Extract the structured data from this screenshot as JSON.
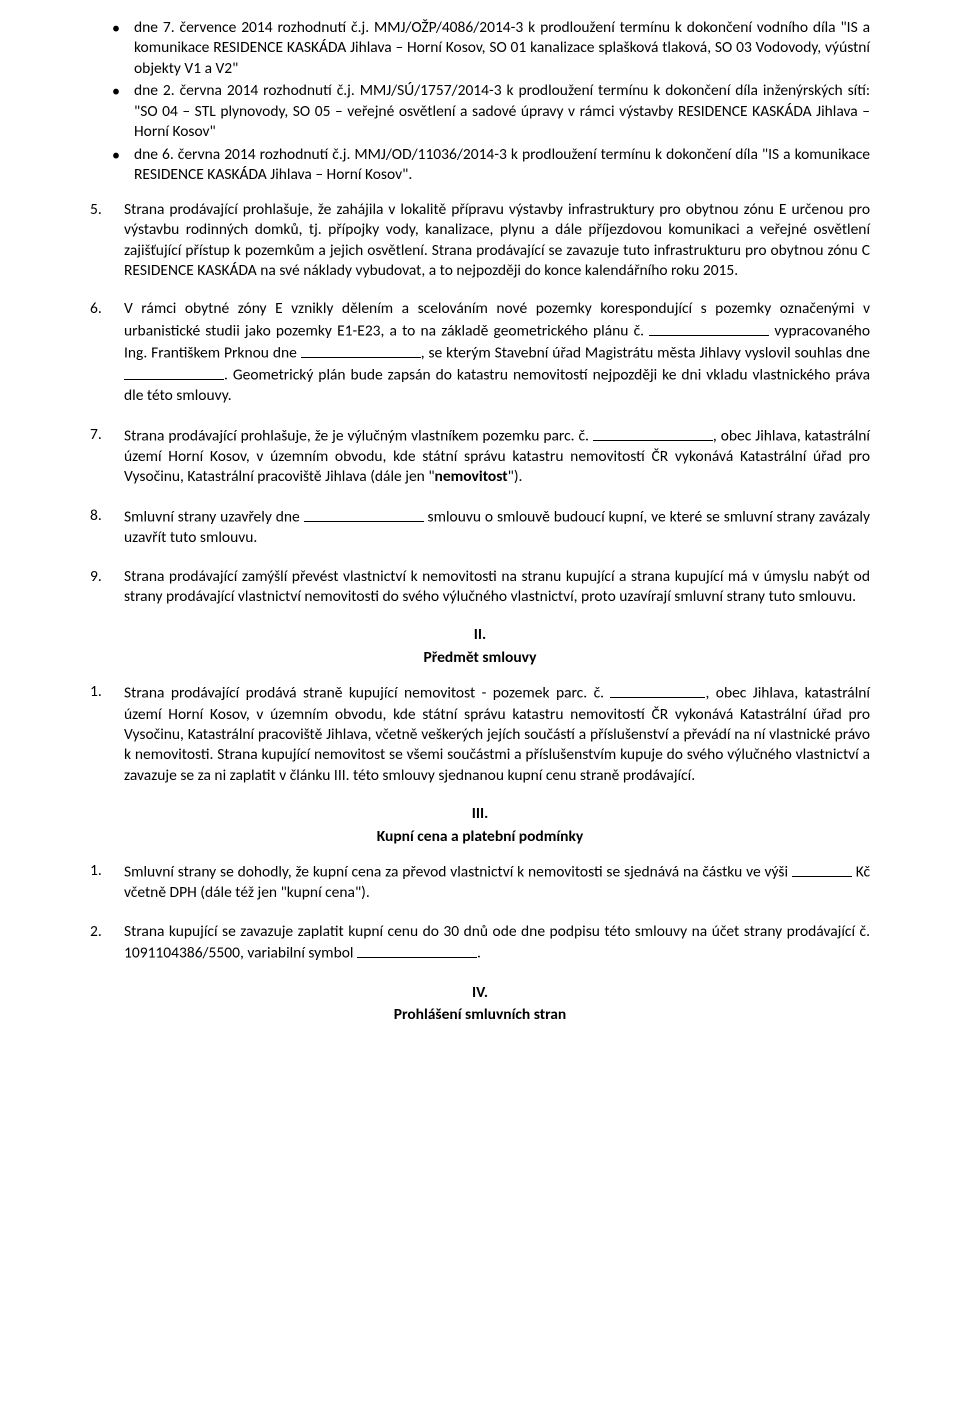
{
  "bullets": {
    "b1_a": "dne 7. července 2014 rozhodnutí č.j. MMJ/OŽP/4086/2014-3 k prodloužení termínu k dokončení vodního díla \"IS a komunikace RESIDENCE KASKÁDA Jihlava – Horní Kosov, SO 01 kanalizace splašková tlaková, SO 03 Vodovody, výústní objekty V1 a V2\"",
    "b1_b": "dne 2. června 2014 rozhodnutí č.j. MMJ/SÚ/1757/2014-3 k prodloužení termínu k dokončení díla inženýrských sítí: \"SO 04 – STL plynovody, SO 05 – veřejné osvětlení a sadové úpravy v rámci výstavby RESIDENCE KASKÁDA Jihlava – Horní Kosov\"",
    "b1_c": "dne 6. června 2014 rozhodnutí č.j. MMJ/OD/11036/2014-3 k prodloužení termínu k dokončení díla \"IS a komunikace RESIDENCE KASKÁDA Jihlava – Horní Kosov\"."
  },
  "items": {
    "n5": "5.",
    "t5": "Strana prodávající prohlašuje, že zahájila v lokalitě přípravu výstavby infrastruktury pro obytnou zónu E určenou pro výstavbu rodinných domků, tj. přípojky vody, kanalizace, plynu a dále příjezdovou komunikaci a veřejné osvětlení zajišťující přístup k pozemkům a jejich osvětlení. Strana prodávající se zavazuje tuto infrastrukturu pro obytnou zónu C RESIDENCE KASKÁDA na své náklady vybudovat, a to nejpozději do konce kalendářního roku 2015.",
    "n6": "6.",
    "t6_a": "V rámci obytné zóny E vznikly dělením a scelováním nové pozemky korespondující s pozemky označenými v urbanistické studii jako pozemky E1-E23, a to na základě geometrického plánu č. ",
    "t6_b": " vypracovaného Ing. Františkem Prknou dne ",
    "t6_c": ", se kterým Stavební úřad Magistrátu města Jihlavy vyslovil souhlas dne ",
    "t6_d": ". Geometrický plán bude zapsán do katastru nemovitostí nejpozději ke dni vkladu vlastnického práva dle této smlouvy.",
    "n7": "7.",
    "t7_a": "Strana prodávající prohlašuje, že je výlučným vlastníkem pozemku parc. č. ",
    "t7_b": ", obec Jihlava, katastrální území Horní Kosov, v územním obvodu, kde státní správu katastru nemovitostí ČR vykonává Katastrální úřad pro Vysočinu, Katastrální pracoviště Jihlava (dále jen \"",
    "t7_c": "nemovitost",
    "t7_d": "\").",
    "n8": "8.",
    "t8_a": "Smluvní strany uzavřely dne ",
    "t8_b": " smlouvu o smlouvě budoucí kupní, ve které se smluvní strany zavázaly uzavřít tuto smlouvu.",
    "n9": "9.",
    "t9": "Strana prodávající zamýšlí převést vlastnictví k nemovitosti na stranu kupující a strana kupující má v úmyslu nabýt od strany prodávající vlastnictví nemovitosti do svého výlučného vlastnictví, proto uzavírají smluvní strany tuto smlouvu."
  },
  "sectionII": {
    "num": "II.",
    "title": "Předmět smlouvy"
  },
  "sII": {
    "n1": "1.",
    "t1_a": "Strana prodávající prodává straně kupující nemovitost - pozemek parc. č. ",
    "t1_b": ", obec Jihlava, katastrální území Horní Kosov, v územním obvodu, kde státní správu katastru nemovitostí ČR vykonává Katastrální úřad pro Vysočinu, Katastrální pracoviště Jihlava, včetně veškerých jejích součástí a příslušenství a převádí na ní vlastnické právo k nemovitosti. Strana kupující nemovitost se všemi součástmi a příslušenstvím kupuje do svého výlučného vlastnictví a zavazuje se za ni zaplatit v článku III. této smlouvy sjednanou kupní cenu straně prodávající."
  },
  "sectionIII": {
    "num": "III.",
    "title": "Kupní cena a platební podmínky"
  },
  "sIII": {
    "n1": "1.",
    "t1_a": "Smluvní strany se dohodly, že kupní cena za převod vlastnictví k nemovitosti se sjednává na částku ve výši ",
    "t1_b": " Kč včetně DPH (dále též jen \"kupní cena\").",
    "n2": "2.",
    "t2_a": "Strana kupující se zavazuje zaplatit kupní cenu do 30 dnů ode dne podpisu této smlouvy na účet strany prodávající č. 1091104386/5500, variabilní symbol ",
    "t2_b": "."
  },
  "sectionIV": {
    "num": "IV.",
    "title": "Prohlášení smluvních stran"
  }
}
